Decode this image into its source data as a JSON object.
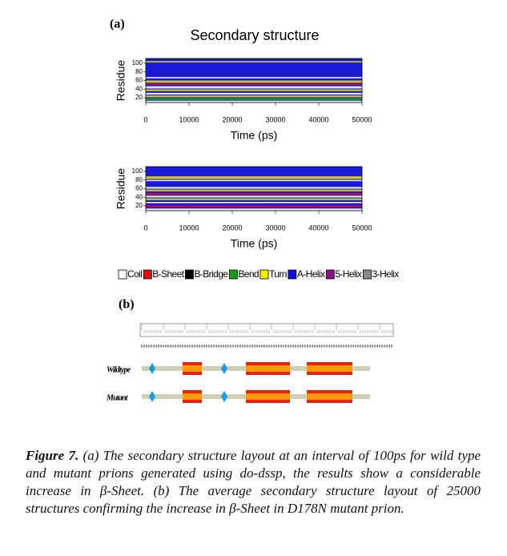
{
  "panel_a": {
    "label": "(a)",
    "title": "Secondary structure",
    "plots": [
      {
        "y_label": "Residue",
        "y_ticks": [
          "20",
          "40",
          "60",
          "80",
          "100"
        ],
        "x_ticks": [
          "0",
          "10000",
          "20000",
          "30000",
          "40000",
          "50000"
        ],
        "x_label": "Time (ps)"
      },
      {
        "y_label": "Residue",
        "y_ticks": [
          "20",
          "40",
          "60",
          "80",
          "100"
        ],
        "x_ticks": [
          "0",
          "10000",
          "20000",
          "30000",
          "40000",
          "50000"
        ],
        "x_label": "Time (ps)"
      }
    ],
    "legend": [
      {
        "name": "Coil",
        "color": "#ffffff"
      },
      {
        "name": "B-Sheet",
        "color": "#e01010"
      },
      {
        "name": "B-Bridge",
        "color": "#000000"
      },
      {
        "name": "Bend",
        "color": "#189a18"
      },
      {
        "name": "Turn",
        "color": "#f0f000"
      },
      {
        "name": "A-Helix",
        "color": "#1010e0"
      },
      {
        "name": "5-Helix",
        "color": "#8a108a"
      },
      {
        "name": "3-Helix",
        "color": "#888888"
      }
    ]
  },
  "panel_b": {
    "label": "(b)",
    "rows": [
      "Wildtype",
      "Mutant"
    ]
  },
  "caption": {
    "label": "Figure 7.",
    "text": "(a) The secondary structure layout at an interval of 100ps for wild type and mutant prions generated using do-dssp, the results show a considerable increase in β-Sheet. (b) The average secondary structure layout of 25000 structures confirming the increase in β-Sheet in D178N mutant prion."
  }
}
